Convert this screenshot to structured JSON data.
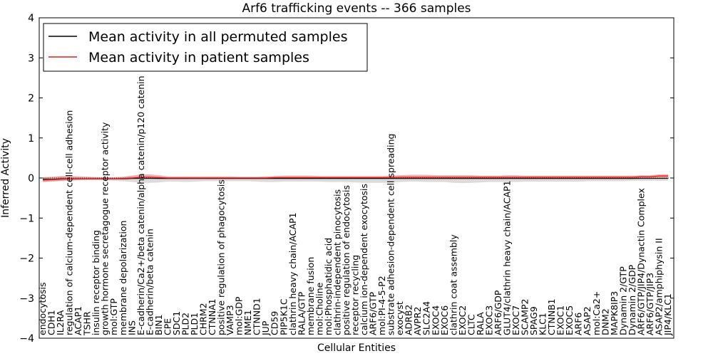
{
  "chart_data": {
    "type": "line",
    "title": "Arf6 trafficking events -- 366 samples",
    "xlabel": "Cellular Entities",
    "ylabel": "Inferred Activity",
    "ylim": [
      -4,
      4
    ],
    "yticks": [
      "4",
      "3",
      "2",
      "1",
      "0",
      "−1",
      "−2",
      "−3",
      "−4"
    ],
    "ytick_values": [
      4,
      3,
      2,
      1,
      0,
      -1,
      -2,
      -3,
      -4
    ],
    "legend": {
      "position": "top-left",
      "entries": [
        {
          "label": "Mean activity in all permuted samples",
          "color": "#000000"
        },
        {
          "label": "Mean activity in patient samples",
          "color": "#d62020"
        }
      ]
    },
    "categories": [
      "endocytosis",
      "CDH1",
      "IL2RA",
      "regulation of calcium-dependent cell-cell adhesion",
      "ACAP1",
      "TSHR",
      "insulin receptor binding",
      "growth hormone secretagogue receptor activity",
      "mol:GTP",
      "membrane depolarization",
      "INS",
      "E-cadherin/Ca2+/beta catenin/alpha catenin/p120 catenin",
      "E-cadherin/beta catenin",
      "BIN1",
      "CPE",
      "SDC1",
      "PLD2",
      "PLD1",
      "CHRM2",
      "CTNNA1",
      "positive regulation of phagocytosis",
      "VAMP3",
      "mol:GDP",
      "NME1",
      "CTNND1",
      "JUP",
      "CD59",
      "PIP5K1C",
      "clathrin heavy chain/ACAP1",
      "RALA/GTP",
      "membrane fusion",
      "mol:Choline",
      "mol:Phosphatidic acid",
      "clathrin-independent pinocytosis",
      "positive regulation of endocytosis",
      "receptor recycling",
      "calcium ion-dependent exocytosis",
      "ARF6/GTP",
      "mol:PI-4-5-P2",
      "substrate adhesion-dependent cell spreading",
      "exocyst",
      "ADRB2",
      "AVPR2",
      "SLC2A4",
      "EXOC4",
      "EXOC6",
      "clathrin coat assembly",
      "EXOC2",
      "CLTC",
      "RALA",
      "EXOC3",
      "ARF6/GDP",
      "GLUT4/clathrin heavy chain/ACAP1",
      "EXOC7",
      "SCAMP2",
      "SPAG9",
      "KLC1",
      "CTNNB1",
      "EXOC1",
      "EXOC5",
      "ARF6",
      "ASAP2",
      "mol:Ca2+",
      "DNM2",
      "MAPK8IP3",
      "Dynamin 2/GTP",
      "Dynamin 2/GDP",
      "ARF6/GTP/JIP4/Dynactin Complex",
      "ARF6/GTP/JIP3",
      "ASAP2/amphiphysin II",
      "JIP4/KLC1"
    ],
    "series": [
      {
        "name": "Mean activity in patient samples",
        "color": "#d62020",
        "values": [
          -0.05,
          -0.04,
          -0.03,
          -0.02,
          -0.02,
          -0.02,
          -0.02,
          -0.02,
          -0.02,
          -0.01,
          0.0,
          0.02,
          0.02,
          0.01,
          0.0,
          0.0,
          0.0,
          0.0,
          0.0,
          0.0,
          0.0,
          0.0,
          0.0,
          0.0,
          0.0,
          0.0,
          0.01,
          0.01,
          0.01,
          0.01,
          0.01,
          0.01,
          0.01,
          0.01,
          0.01,
          0.01,
          0.01,
          0.01,
          0.01,
          0.01,
          0.02,
          0.02,
          0.02,
          0.02,
          0.02,
          0.02,
          0.02,
          0.02,
          0.02,
          0.02,
          0.02,
          0.02,
          0.02,
          0.02,
          0.02,
          0.02,
          0.02,
          0.02,
          0.02,
          0.02,
          0.02,
          0.02,
          0.02,
          0.02,
          0.02,
          0.02,
          0.02,
          0.03,
          0.03,
          0.05,
          0.05
        ],
        "upper": [
          0.02,
          0.03,
          0.05,
          0.05,
          0.04,
          0.03,
          0.02,
          0.02,
          0.02,
          0.03,
          0.06,
          0.09,
          0.09,
          0.07,
          0.04,
          0.04,
          0.04,
          0.04,
          0.04,
          0.04,
          0.04,
          0.04,
          0.03,
          0.03,
          0.03,
          0.04,
          0.05,
          0.06,
          0.06,
          0.06,
          0.06,
          0.05,
          0.05,
          0.05,
          0.05,
          0.05,
          0.05,
          0.05,
          0.05,
          0.06,
          0.07,
          0.08,
          0.08,
          0.08,
          0.07,
          0.07,
          0.07,
          0.07,
          0.07,
          0.06,
          0.06,
          0.06,
          0.07,
          0.07,
          0.06,
          0.06,
          0.06,
          0.06,
          0.06,
          0.06,
          0.06,
          0.06,
          0.06,
          0.06,
          0.06,
          0.06,
          0.06,
          0.07,
          0.07,
          0.09,
          0.09
        ],
        "lower": [
          -0.1,
          -0.08,
          -0.07,
          -0.06,
          -0.05,
          -0.04,
          -0.04,
          -0.04,
          -0.04,
          -0.04,
          -0.03,
          -0.02,
          -0.02,
          -0.03,
          -0.03,
          -0.03,
          -0.03,
          -0.03,
          -0.03,
          -0.03,
          -0.03,
          -0.03,
          -0.03,
          -0.03,
          -0.03,
          -0.03,
          -0.03,
          -0.03,
          -0.03,
          -0.03,
          -0.03,
          -0.03,
          -0.03,
          -0.03,
          -0.03,
          -0.03,
          -0.03,
          -0.03,
          -0.03,
          -0.03,
          -0.03,
          -0.03,
          -0.03,
          -0.03,
          -0.03,
          -0.03,
          -0.03,
          -0.03,
          -0.03,
          -0.03,
          -0.03,
          -0.03,
          -0.03,
          -0.03,
          -0.03,
          -0.03,
          -0.03,
          -0.03,
          -0.03,
          -0.03,
          -0.03,
          -0.03,
          -0.03,
          -0.03,
          -0.03,
          -0.03,
          -0.03,
          -0.02,
          -0.02,
          -0.01,
          0.0
        ]
      },
      {
        "name": "Mean activity in all permuted samples",
        "color": "#000000",
        "values": [
          -0.03,
          -0.03,
          -0.02,
          -0.02,
          -0.02,
          -0.02,
          -0.02,
          -0.02,
          -0.02,
          -0.02,
          -0.01,
          -0.01,
          -0.01,
          -0.01,
          -0.01,
          -0.01,
          -0.01,
          -0.01,
          -0.01,
          -0.01,
          -0.01,
          -0.01,
          -0.01,
          -0.01,
          -0.01,
          -0.01,
          -0.01,
          -0.01,
          -0.01,
          -0.01,
          -0.01,
          -0.01,
          -0.01,
          -0.01,
          -0.01,
          -0.01,
          -0.01,
          -0.01,
          -0.01,
          -0.01,
          -0.01,
          -0.01,
          -0.01,
          -0.01,
          -0.01,
          -0.01,
          -0.01,
          -0.01,
          -0.01,
          -0.01,
          -0.01,
          -0.01,
          -0.01,
          -0.01,
          -0.01,
          -0.01,
          -0.01,
          -0.01,
          -0.01,
          -0.01,
          -0.01,
          -0.01,
          -0.01,
          -0.01,
          -0.01,
          -0.01,
          -0.01,
          -0.01,
          -0.01,
          -0.01,
          -0.01
        ],
        "upper": [
          0.01,
          0.01,
          0.02,
          0.02,
          0.02,
          0.02,
          0.02,
          0.01,
          0.01,
          0.02,
          0.03,
          0.04,
          0.04,
          0.03,
          0.02,
          0.02,
          0.02,
          0.02,
          0.02,
          0.02,
          0.02,
          0.02,
          0.02,
          0.02,
          0.02,
          0.02,
          0.02,
          0.02,
          0.02,
          0.02,
          0.02,
          0.02,
          0.02,
          0.02,
          0.02,
          0.02,
          0.02,
          0.02,
          0.02,
          0.02,
          0.02,
          0.02,
          0.02,
          0.02,
          0.02,
          0.02,
          0.02,
          0.02,
          0.02,
          0.02,
          0.02,
          0.02,
          0.02,
          0.02,
          0.02,
          0.02,
          0.02,
          0.02,
          0.02,
          0.02,
          0.02,
          0.02,
          0.02,
          0.02,
          0.02,
          0.02,
          0.02,
          0.02,
          0.02,
          0.02,
          0.02
        ],
        "lower": [
          -0.09,
          -0.09,
          -0.08,
          -0.07,
          -0.06,
          -0.06,
          -0.06,
          -0.06,
          -0.07,
          -0.08,
          -0.1,
          -0.12,
          -0.12,
          -0.11,
          -0.09,
          -0.09,
          -0.1,
          -0.09,
          -0.08,
          -0.08,
          -0.08,
          -0.08,
          -0.08,
          -0.08,
          -0.09,
          -0.1,
          -0.1,
          -0.09,
          -0.09,
          -0.09,
          -0.09,
          -0.09,
          -0.1,
          -0.1,
          -0.1,
          -0.11,
          -0.12,
          -0.12,
          -0.12,
          -0.11,
          -0.1,
          -0.09,
          -0.09,
          -0.1,
          -0.1,
          -0.1,
          -0.12,
          -0.13,
          -0.12,
          -0.11,
          -0.1,
          -0.1,
          -0.1,
          -0.1,
          -0.09,
          -0.09,
          -0.09,
          -0.09,
          -0.09,
          -0.09,
          -0.09,
          -0.08,
          -0.08,
          -0.08,
          -0.08,
          -0.08,
          -0.07,
          -0.07,
          -0.07,
          -0.07,
          -0.07
        ]
      }
    ]
  }
}
